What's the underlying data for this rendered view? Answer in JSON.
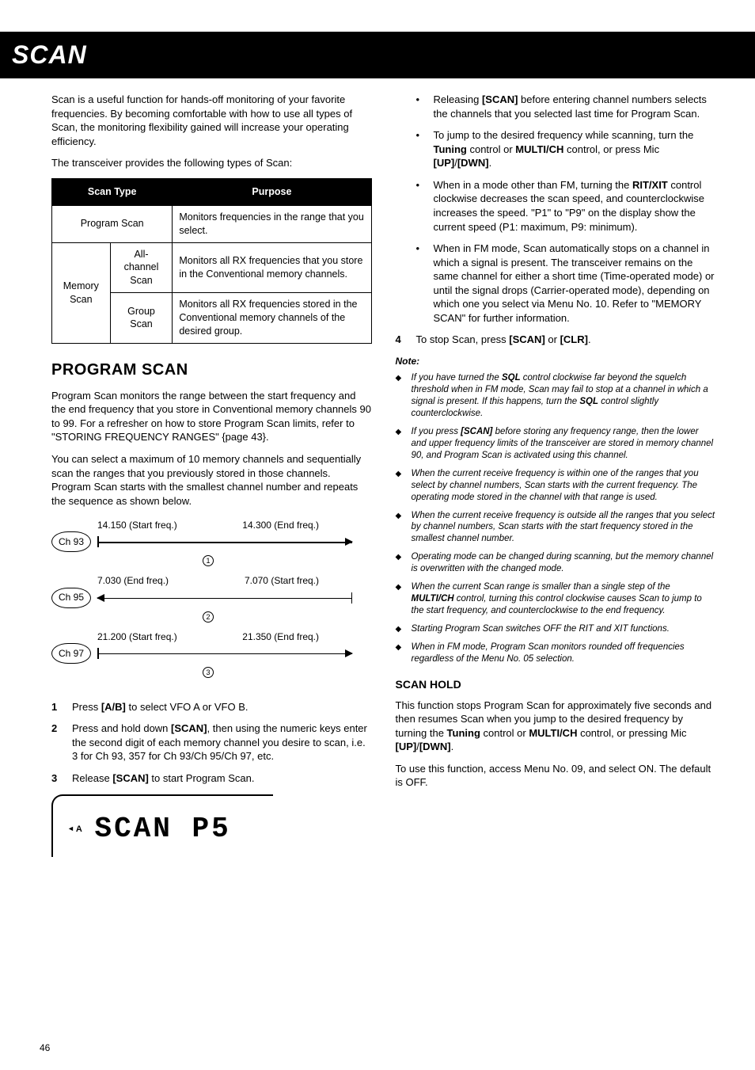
{
  "page_title": "SCAN",
  "page_number": "46",
  "intro_p1": "Scan is a useful function for hands-off monitoring of your favorite frequencies.  By becoming comfortable with how to use all types of Scan, the monitoring flexibility gained will increase your operating efficiency.",
  "intro_p2": "The transceiver provides the following types of Scan:",
  "table": {
    "headers": [
      "Scan Type",
      "Purpose"
    ],
    "rows": {
      "program": {
        "label": "Program Scan",
        "purpose": "Monitors frequencies in the range that you select."
      },
      "memory_label": "Memory Scan",
      "all_channel": {
        "label": "All-channel Scan",
        "purpose": "Monitors all RX frequencies that you store in the Conventional memory channels."
      },
      "group": {
        "label": "Group Scan",
        "purpose": "Monitors all RX frequencies stored in the Conventional memory channels of the desired group."
      }
    }
  },
  "program_scan": {
    "heading": "PROGRAM SCAN",
    "p1": "Program Scan monitors the range between the start frequency and the end frequency that you store in Conventional memory channels 90 to 99.  For a refresher on how to store Program Scan limits, refer to \"STORING FREQUENCY RANGES\" {page 43}.",
    "p2": "You can select a maximum of 10 memory channels and sequentially scan the ranges that you previously stored in those channels.  Program Scan starts with the smallest channel number and repeats the sequence as shown below.",
    "diagram": {
      "rows": [
        {
          "ch": "Ch 93",
          "left": "14.150 (Start freq.)",
          "right": "14.300 (End freq.)",
          "dir": "right",
          "num": "1"
        },
        {
          "ch": "Ch 95",
          "left": "7.030 (End freq.)",
          "right": "7.070 (Start freq.)",
          "dir": "left",
          "num": "2"
        },
        {
          "ch": "Ch 97",
          "left": "21.200 (Start freq.)",
          "right": "21.350 (End freq.)",
          "dir": "right",
          "num": "3"
        }
      ]
    },
    "steps": [
      {
        "n": "1",
        "html": "Press <b>[A/B]</b> to select VFO A or VFO B."
      },
      {
        "n": "2",
        "html": "Press and hold down <b>[SCAN]</b>, then using the numeric keys enter the second digit of each memory channel you desire to scan, i.e. 3 for Ch 93, 357 for Ch 93/Ch 95/Ch 97, etc."
      },
      {
        "n": "3",
        "html": "Release <b>[SCAN]</b> to start Program Scan."
      }
    ],
    "lcd": {
      "indicator": "A",
      "text": "SCAN  P5"
    }
  },
  "right_col": {
    "bullets": [
      "Releasing <b>[SCAN]</b> before entering channel numbers selects the channels that you selected last time for Program Scan.",
      "To jump to the desired frequency while scanning, turn the <b>Tuning</b> control or <b>MULTI/CH</b> control, or press Mic <b>[UP]</b>/<b>[DWN]</b>.",
      "When in a mode other than FM, turning the <b>RIT/XIT</b> control clockwise decreases the scan speed, and counterclockwise increases the speed.  \"P1\" to \"P9\" on the display show the current speed (P1: maximum, P9: minimum).",
      "When in FM mode, Scan automatically stops on a channel in which a signal is present.  The transceiver remains on the same channel for either a short time (Time-operated mode) or until the signal drops (Carrier-operated mode), depending on which one you select via Menu No. 10.  Refer to \"MEMORY SCAN\" for further information."
    ],
    "step4": {
      "n": "4",
      "html": "To stop Scan, press <b>[SCAN]</b> or <b>[CLR]</b>."
    },
    "note_label": "Note:",
    "notes": [
      "If you have turned the <b>SQL</b> control clockwise far beyond the squelch threshold when in FM mode, Scan may fail to stop at a channel in which a signal is present.  If this happens, turn the <b>SQL</b> control slightly counterclockwise.",
      "If you press <b>[SCAN]</b> before storing any frequency range, then the lower and upper frequency limits of the transceiver are stored in memory channel 90, and Program Scan is activated using this channel.",
      "When the current receive frequency is within one of the ranges that you select by channel numbers, Scan starts with the current frequency.  The operating mode stored in the channel with that range is used.",
      "When the current receive frequency is outside all the ranges that you select by channel numbers, Scan starts with the start frequency stored in the smallest channel number.",
      "Operating mode can be changed during scanning, but the memory channel is overwritten with the changed mode.",
      "When the current Scan range is smaller than a single step of the <b>MULTI/CH</b> control, turning this control clockwise causes Scan to jump to the start frequency, and counterclockwise to the end frequency.",
      "Starting Program Scan switches OFF the RIT and XIT functions.",
      "When in FM mode, Program Scan monitors rounded off frequencies regardless of the Menu No. 05 selection."
    ]
  },
  "scan_hold": {
    "heading": "SCAN HOLD",
    "p1": "This function stops Program Scan for approximately five seconds and then resumes Scan when you jump to the desired frequency by turning the <b>Tuning</b> control or <b>MULTI/CH</b> control, or pressing Mic <b>[UP]</b>/<b>[DWN]</b>.",
    "p2": "To use this function, access Menu No. 09, and select ON.  The default is OFF."
  }
}
